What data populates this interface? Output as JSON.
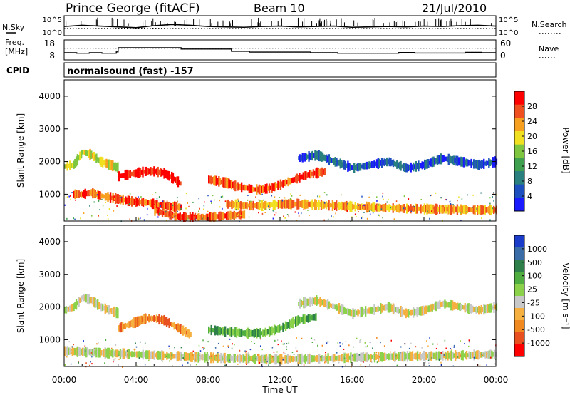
{
  "header": {
    "station": "Prince George (fitACF)",
    "beam": "Beam 10",
    "date": "21/Jul/2010",
    "cpid_label": "CPID",
    "cpid_text": "normalsound (fast) -157"
  },
  "left_labels": {
    "nsky": "N.Sky",
    "freq_line1": "Freq.",
    "freq_line2": "[MHz]"
  },
  "right_labels": {
    "nsearch": "N.Search",
    "nave": "Nave"
  },
  "colors": {
    "power_scale": [
      "#1a1aff",
      "#1d4fbf",
      "#2a7f7f",
      "#3fa050",
      "#7fc640",
      "#f0e020",
      "#f7a020",
      "#f05020",
      "#ff0000"
    ],
    "velocity_scale": [
      "#1a3cc8",
      "#3a6ca8",
      "#2e7f4a",
      "#4fae3f",
      "#8cd14a",
      "#c8c8c8",
      "#f5b040",
      "#f08a20",
      "#e85020",
      "#ff0000"
    ]
  },
  "chart_data": [
    {
      "type": "line",
      "panel": "noise",
      "yticks": [
        "10^5",
        "10^0"
      ],
      "right_yticks": [
        "10^5",
        "10^0"
      ],
      "series": [
        {
          "name": "N.Sky",
          "x": [
            0,
            1,
            2,
            3,
            4,
            5,
            6,
            7,
            8,
            9,
            10,
            11,
            12,
            13,
            14,
            15,
            16,
            17,
            18,
            19,
            20,
            21,
            22,
            23,
            24
          ],
          "values": [
            2.3,
            2.6,
            2.4,
            2.2,
            2.0,
            2.5,
            2.8,
            2.6,
            2.3,
            2.2,
            2.1,
            2.3,
            2.4,
            2.2,
            2.3,
            2.4,
            2.1,
            2.2,
            2.3,
            2.2,
            2.4,
            2.3,
            2.5,
            2.6,
            2.4
          ]
        },
        {
          "name": "N.Search",
          "x": [
            0,
            2,
            4,
            6,
            8,
            10,
            12,
            14,
            16,
            18,
            20,
            22,
            24
          ],
          "values": [
            1.8,
            1.8,
            1.9,
            1.8,
            1.8,
            1.8,
            1.8,
            1.8,
            1.8,
            1.8,
            1.8,
            1.8,
            1.8
          ]
        }
      ]
    },
    {
      "type": "line",
      "panel": "frequency",
      "yticks": [
        "18",
        "8"
      ],
      "right_yticks": [
        "60",
        "0"
      ],
      "series": [
        {
          "name": "Freq.",
          "x": [
            0,
            0.7,
            0.7,
            1.4,
            1.4,
            2.1,
            2.1,
            2.9,
            2.9,
            3.0,
            3.0,
            6.5,
            6.5,
            9.3,
            9.3,
            10.3,
            10.3,
            13.7,
            13.7,
            15.2,
            15.2,
            18.6,
            18.6,
            19.5,
            19.5,
            22.3,
            22.3,
            23.2,
            23.2,
            24
          ],
          "values": [
            11.3,
            11.3,
            11.0,
            11.0,
            11.3,
            11.3,
            11.0,
            11.0,
            11.8,
            11.8,
            14.3,
            14.3,
            13.5,
            13.5,
            12.2,
            12.2,
            11.7,
            11.7,
            11.3,
            11.3,
            11.0,
            11.0,
            11.4,
            11.4,
            11.1,
            11.1,
            11.5,
            11.5,
            11.3,
            11.3
          ]
        },
        {
          "name": "Nave",
          "x": [
            0,
            24
          ],
          "values": [
            35,
            35
          ]
        }
      ]
    },
    {
      "type": "heatmap",
      "panel": "power",
      "ylabel": "Slant Range [km]",
      "ylim": [
        180,
        4500
      ],
      "yticks": [
        1000,
        2000,
        3000,
        4000
      ],
      "xlim": [
        0,
        24
      ],
      "colorbar_label": "Power [dB]",
      "colorbar_ticks": [
        4,
        8,
        12,
        16,
        20,
        24,
        28
      ],
      "bands": [
        {
          "x": [
            0.0,
            0.5,
            1.0,
            1.5,
            2.0,
            2.5,
            3.0
          ],
          "values": [
            1850,
            1900,
            2300,
            2200,
            2000,
            1900,
            1800
          ],
          "level": 5
        },
        {
          "x": [
            3.0,
            3.5,
            4.0,
            4.5,
            5.0,
            5.5,
            6.0,
            6.5
          ],
          "values": [
            1550,
            1600,
            1650,
            1700,
            1700,
            1650,
            1500,
            1300
          ],
          "level": 8
        },
        {
          "x": [
            0.5,
            1.0,
            1.5,
            2.0,
            2.5,
            3.0,
            3.5,
            4.0,
            4.5,
            5.0,
            5.5,
            6.0,
            6.5
          ],
          "values": [
            1000,
            1000,
            1050,
            950,
            900,
            850,
            800,
            760,
            750,
            700,
            650,
            620,
            600
          ],
          "level": 7
        },
        {
          "x": [
            5.0,
            5.5,
            6.0,
            6.5,
            7.0,
            7.5,
            8.0,
            8.5,
            9.0,
            9.5,
            10.0
          ],
          "values": [
            500,
            420,
            350,
            300,
            300,
            300,
            300,
            320,
            340,
            360,
            380
          ],
          "level": 7
        },
        {
          "x": [
            8.0,
            8.5,
            9.0,
            9.5,
            10.0,
            10.5,
            11.0,
            11.5,
            12.0,
            12.5,
            13.0,
            13.5,
            14.0,
            14.5
          ],
          "values": [
            1450,
            1400,
            1350,
            1250,
            1200,
            1150,
            1150,
            1200,
            1300,
            1400,
            1500,
            1600,
            1650,
            1700
          ],
          "level": 7
        },
        {
          "x": [
            9.0,
            10.0,
            11.0,
            12.0,
            13.0,
            14.0,
            15.0,
            16.0,
            17.0,
            18.0,
            19.0,
            20.0,
            21.0,
            22.0,
            23.0,
            24.0
          ],
          "values": [
            700,
            650,
            650,
            700,
            700,
            680,
            650,
            620,
            600,
            580,
            560,
            550,
            540,
            530,
            520,
            520
          ],
          "level": 6
        },
        {
          "x": [
            13.0,
            14.0,
            15.0,
            16.0,
            17.0,
            18.0,
            19.0,
            20.0,
            21.0,
            22.0,
            23.0,
            24.0
          ],
          "values": [
            2100,
            2200,
            2000,
            1800,
            1900,
            2000,
            1800,
            1900,
            2100,
            2000,
            1900,
            2000
          ],
          "level": 1
        }
      ]
    },
    {
      "type": "heatmap",
      "panel": "velocity",
      "ylabel": "Slant Range [km]",
      "xlabel": "Time UT",
      "ylim": [
        180,
        4500
      ],
      "yticks": [
        1000,
        2000,
        3000,
        4000
      ],
      "xlim": [
        0,
        24
      ],
      "xticks": [
        "00:00",
        "04:00",
        "08:00",
        "12:00",
        "16:00",
        "20:00",
        "00:00"
      ],
      "colorbar_label": "Velocity [m s⁻¹]",
      "colorbar_ticks": [
        1000,
        500,
        100,
        25,
        -25,
        -100,
        -500,
        -1000
      ],
      "bands": [
        {
          "x": [
            0.0,
            0.5,
            1.0,
            1.5,
            2.0,
            2.5,
            3.0
          ],
          "values": [
            1900,
            2000,
            2300,
            2200,
            2000,
            1900,
            1800
          ],
          "level": 5
        },
        {
          "x": [
            3.0,
            3.5,
            4.0,
            4.5,
            5.0,
            5.5,
            6.0,
            6.5,
            7.0
          ],
          "values": [
            1350,
            1450,
            1550,
            1650,
            1650,
            1600,
            1450,
            1300,
            1150
          ],
          "level": 7
        },
        {
          "x": [
            8.0,
            9.0,
            10.0,
            11.0,
            12.0,
            13.0,
            14.0
          ],
          "values": [
            1300,
            1250,
            1200,
            1200,
            1350,
            1600,
            1700
          ],
          "level": 3
        },
        {
          "x": [
            0.0,
            2.0,
            4.0,
            6.0,
            8.0,
            10.0,
            12.0,
            14.0,
            16.0,
            18.0,
            20.0,
            22.0,
            24.0
          ],
          "values": [
            650,
            600,
            550,
            500,
            450,
            420,
            400,
            420,
            450,
            480,
            500,
            520,
            550
          ],
          "level": 5
        },
        {
          "x": [
            13.0,
            14.0,
            15.0,
            16.0,
            17.0,
            18.0,
            19.0,
            20.0,
            21.0,
            22.0,
            23.0,
            24.0
          ],
          "values": [
            2100,
            2200,
            2000,
            1800,
            1900,
            2000,
            1800,
            1900,
            2100,
            2000,
            1900,
            2000
          ],
          "level": 5
        }
      ]
    }
  ]
}
